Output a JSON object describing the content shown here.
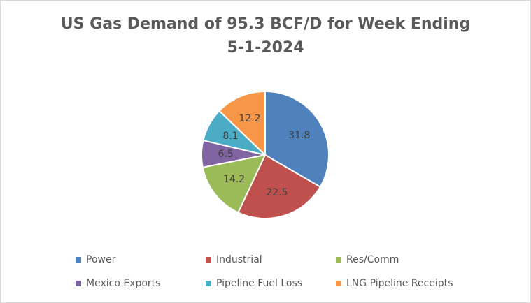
{
  "chart_data": {
    "type": "pie",
    "title_lines": [
      "US Gas Demand of 95.3 BCF/D  for Week Ending",
      "5-1-2024"
    ],
    "categories": [
      "Power",
      "Industrial",
      "Res/Comm",
      "Mexico Exports",
      "Pipeline Fuel Loss",
      "LNG Pipeline Receipts"
    ],
    "values": [
      31.8,
      22.5,
      14.2,
      6.5,
      8.1,
      12.2
    ],
    "value_labels": [
      "31.8",
      "22.5",
      "14.2",
      "6.5",
      "8.1",
      "12.2"
    ],
    "colors": [
      "#4f81bd",
      "#c0504d",
      "#9bbb59",
      "#8064a2",
      "#4bacc6",
      "#f79646"
    ],
    "legend_position": "bottom"
  }
}
